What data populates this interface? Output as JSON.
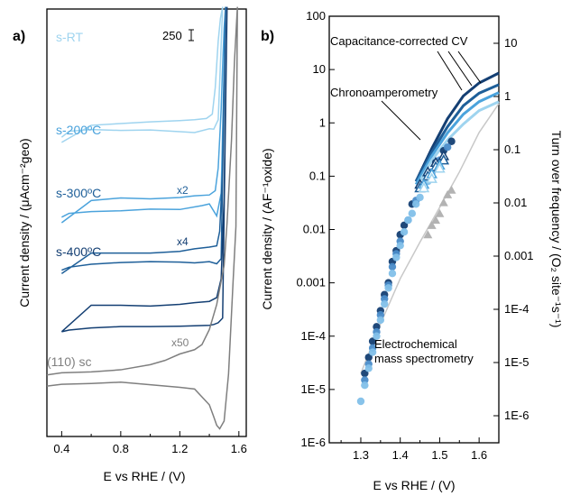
{
  "chart_data": [
    {
      "panel": "a)",
      "type": "line",
      "xlabel": "E vs RHE / (V)",
      "ylabel": "Current density / (μAcm⁻²geo)",
      "xlim": [
        0.3,
        1.65
      ],
      "x_ticks": [
        "0.4",
        "0.8",
        "1.2",
        "1.6"
      ],
      "scale_bar_label": "250",
      "series": [
        {
          "name": "s-RT",
          "color": "#9fd4ef",
          "multiplier": "",
          "x_forward": [
            0.4,
            0.6,
            0.8,
            1.0,
            1.2,
            1.3,
            1.38,
            1.42,
            1.44,
            1.46,
            1.475,
            1.49
          ],
          "y_forward": [
            68.8,
            72.8,
            73.2,
            73.6,
            73.9,
            74.1,
            74.4,
            75.4,
            81.6,
            92.5,
            97.8,
            100.5
          ],
          "x_reverse": [
            1.49,
            1.46,
            1.43,
            1.4,
            1.3,
            1.2,
            1.0,
            0.8,
            0.6,
            0.45,
            0.4
          ],
          "y_reverse": [
            100.5,
            74.1,
            71.9,
            72.0,
            71.1,
            71.3,
            71.7,
            71.6,
            71.8,
            71.4,
            70.0
          ]
        },
        {
          "name": "s-200ºC",
          "color": "#4ba3dc",
          "multiplier": "",
          "x_forward": [
            0.4,
            0.6,
            0.8,
            1.0,
            1.2,
            1.3,
            1.4,
            1.44,
            1.46,
            1.48,
            1.49,
            1.5,
            1.51
          ],
          "y_forward": [
            50.0,
            55.2,
            55.8,
            55.6,
            55.9,
            56.3,
            56.5,
            57.5,
            62.8,
            76.5,
            86.9,
            95.5,
            100.5
          ],
          "x_reverse": [
            1.51,
            1.48,
            1.45,
            1.4,
            1.35,
            1.2,
            1.0,
            0.8,
            0.6,
            0.45,
            0.4
          ],
          "y_reverse": [
            100.5,
            56.9,
            51.6,
            54.4,
            54.0,
            53.1,
            53.2,
            52.8,
            52.6,
            52.2,
            51.3
          ]
        },
        {
          "name": "s-300ºC",
          "color": "#1e5f99",
          "multiplier": "x2",
          "x_forward": [
            0.4,
            0.6,
            0.8,
            1.0,
            1.2,
            1.3,
            1.4,
            1.45,
            1.47,
            1.49,
            1.5,
            1.51
          ],
          "y_forward": [
            38.1,
            42.9,
            42.9,
            42.9,
            43.3,
            43.9,
            44.3,
            44.6,
            48.0,
            62.5,
            83.6,
            100.5
          ],
          "x_reverse": [
            1.51,
            1.48,
            1.45,
            1.4,
            1.3,
            1.2,
            1.0,
            0.8,
            0.6,
            0.45,
            0.4
          ],
          "y_reverse": [
            100.5,
            41.6,
            40.4,
            40.9,
            40.6,
            40.8,
            40.9,
            40.7,
            40.3,
            39.6,
            38.9
          ]
        },
        {
          "name": "s-400ºC",
          "color": "#143f73",
          "multiplier": "x4",
          "x_forward": [
            0.4,
            0.6,
            0.8,
            1.0,
            1.2,
            1.3,
            1.4,
            1.45,
            1.48,
            1.5,
            1.51,
            1.52
          ],
          "y_forward": [
            24.5,
            30.7,
            30.7,
            30.5,
            30.9,
            31.3,
            31.6,
            32.5,
            36.9,
            55.8,
            80.0,
            100.5
          ],
          "x_reverse": [
            1.52,
            1.49,
            1.46,
            1.43,
            1.4,
            1.2,
            1.0,
            0.8,
            0.6,
            0.45,
            0.4
          ],
          "y_reverse": [
            100.5,
            27.7,
            26.6,
            26.2,
            26.0,
            25.8,
            25.7,
            25.7,
            25.4,
            24.9,
            24.5
          ]
        },
        {
          "name": "(110) sc",
          "color": "#7f7f7f",
          "multiplier": "x50",
          "x_forward": [
            0.3,
            0.4,
            0.6,
            0.8,
            1.0,
            1.1,
            1.2,
            1.3,
            1.35,
            1.4,
            1.45,
            1.5,
            1.52,
            1.55,
            1.57,
            1.59
          ],
          "y_forward": [
            14.4,
            14.9,
            15.1,
            15.6,
            16.8,
            17.8,
            19.3,
            20.3,
            21.5,
            25.0,
            30.9,
            40.0,
            50.0,
            69.3,
            87.6,
            100.5
          ],
          "x_reverse": [
            1.58,
            1.56,
            1.53,
            1.5,
            1.47,
            1.45,
            1.43,
            1.4,
            1.3,
            1.2,
            1.0,
            0.8,
            0.6,
            0.4,
            0.3
          ],
          "y_reverse": [
            49.1,
            35.7,
            14.6,
            3.6,
            1.8,
            2.6,
            4.6,
            7.4,
            11.1,
            11.5,
            12.1,
            12.7,
            12.4,
            12.2,
            11.8
          ]
        }
      ]
    },
    {
      "panel": "b)",
      "type": "scatter",
      "xlabel": "E vs RHE / (V)",
      "ylabel": "Current density / (AF⁻¹oxide)",
      "ylabel_right": "Turn over frequency / (O₂ site⁻¹s⁻¹)",
      "xlim": [
        1.22,
        1.65
      ],
      "ylim": [
        1e-06,
        100
      ],
      "yscale": "log",
      "x_ticks": [
        "1.3",
        "1.4",
        "1.5",
        "1.6"
      ],
      "y_ticks_left": [
        "100",
        "10",
        "1",
        "0.1",
        "0.01",
        "0.001",
        "1E-4",
        "1E-5",
        "1E-6"
      ],
      "y_ticks_right": [
        "10",
        "1",
        "0.1",
        "0.01",
        "0.001",
        "1E-4",
        "1E-5",
        "1E-6"
      ],
      "annotations": [
        "Capacitance-corrected CV",
        "Chronoamperometry",
        "Electrochemical mass spectrometry"
      ],
      "cv_lines": [
        {
          "color": "#143f73",
          "x": [
            1.44,
            1.48,
            1.52,
            1.56,
            1.6,
            1.65
          ],
          "y": [
            0.08,
            0.33,
            1.2,
            3.2,
            5.6,
            8.6
          ]
        },
        {
          "color": "#1e5f99",
          "x": [
            1.44,
            1.48,
            1.52,
            1.56,
            1.6,
            1.65
          ],
          "y": [
            0.08,
            0.28,
            0.85,
            2.1,
            3.6,
            5.2
          ]
        },
        {
          "color": "#4ba3dc",
          "x": [
            1.44,
            1.48,
            1.52,
            1.56,
            1.6,
            1.65
          ],
          "y": [
            0.07,
            0.24,
            0.65,
            1.45,
            2.5,
            3.7
          ]
        },
        {
          "color": "#9fd4ef",
          "x": [
            1.44,
            1.48,
            1.52,
            1.56,
            1.6,
            1.65
          ],
          "y": [
            0.06,
            0.2,
            0.48,
            0.95,
            1.7,
            2.5
          ]
        },
        {
          "color": "#c8c8c8",
          "x": [
            1.3,
            1.35,
            1.4,
            1.45,
            1.5,
            1.55,
            1.6,
            1.65
          ],
          "y": [
            2e-05,
            0.00017,
            0.0012,
            0.0058,
            0.026,
            0.12,
            0.66,
            2.3
          ]
        }
      ],
      "chrono_points": [
        {
          "color": "#143f73",
          "x": [
            1.45,
            1.47,
            1.49,
            1.51
          ],
          "y": [
            0.07,
            0.12,
            0.18,
            0.24
          ]
        },
        {
          "color": "#1e5f99",
          "x": [
            1.45,
            1.47,
            1.49,
            1.51
          ],
          "y": [
            0.06,
            0.1,
            0.15,
            0.2
          ]
        },
        {
          "color": "#4ba3dc",
          "x": [
            1.46,
            1.48,
            1.5
          ],
          "y": [
            0.07,
            0.11,
            0.16
          ]
        },
        {
          "color": "#9fd4ef",
          "x": [
            1.46,
            1.48,
            1.5
          ],
          "y": [
            0.06,
            0.09,
            0.14
          ]
        }
      ],
      "grey_triangles": {
        "color": "#b3b3b3",
        "x": [
          1.47,
          1.48,
          1.49,
          1.5,
          1.51,
          1.52,
          1.53
        ],
        "y": [
          0.008,
          0.012,
          0.015,
          0.02,
          0.032,
          0.045,
          0.055
        ]
      },
      "ems_points": [
        {
          "color": "#143f73",
          "x": [
            1.31,
            1.32,
            1.33,
            1.34,
            1.35,
            1.36,
            1.37,
            1.38,
            1.39,
            1.4,
            1.41,
            1.43,
            1.45,
            1.47,
            1.49,
            1.51,
            1.53
          ],
          "y": [
            2e-05,
            4e-05,
            8e-05,
            0.00015,
            0.0003,
            0.0006,
            0.001,
            0.0025,
            0.004,
            0.008,
            0.012,
            0.03,
            0.06,
            0.1,
            0.18,
            0.3,
            0.45
          ]
        },
        {
          "color": "#4a8cc9",
          "x": [
            1.31,
            1.32,
            1.33,
            1.34,
            1.35,
            1.36,
            1.37,
            1.38,
            1.39,
            1.4,
            1.42,
            1.44,
            1.46,
            1.48,
            1.5,
            1.52
          ],
          "y": [
            1.5e-05,
            3e-05,
            6e-05,
            0.00012,
            0.00025,
            0.0005,
            0.0009,
            0.002,
            0.0035,
            0.006,
            0.015,
            0.035,
            0.07,
            0.12,
            0.2,
            0.35
          ]
        },
        {
          "color": "#82c0e9",
          "x": [
            1.3,
            1.31,
            1.32,
            1.33,
            1.34,
            1.35,
            1.36,
            1.37,
            1.38,
            1.39,
            1.4,
            1.41,
            1.42,
            1.43,
            1.44,
            1.45,
            1.46,
            1.47,
            1.48
          ],
          "y": [
            6e-06,
            1.2e-05,
            2.5e-05,
            5e-05,
            0.0001,
            0.0002,
            0.0004,
            0.0008,
            0.0015,
            0.003,
            0.005,
            0.009,
            0.015,
            0.02,
            0.03,
            0.04,
            0.06,
            0.08,
            0.1
          ]
        }
      ]
    }
  ]
}
